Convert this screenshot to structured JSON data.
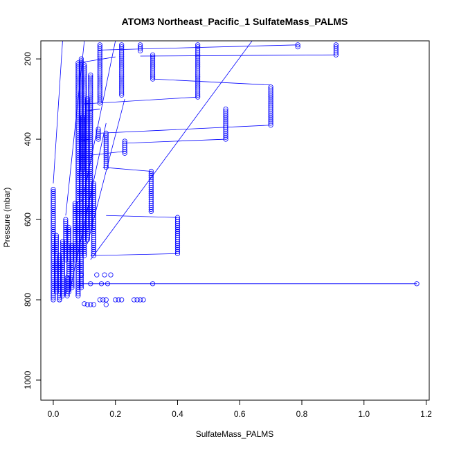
{
  "chart_data": {
    "type": "scatter",
    "title": "ATOM3 Northeast_Pacific_1 SulfateMass_PALMS",
    "xlabel": "SulfateMass_PALMS",
    "ylabel": "Pressure (mbar)",
    "xlim": [
      -0.04,
      1.21
    ],
    "ylim": [
      1050,
      155
    ],
    "y_reversed": true,
    "x_ticks": [
      "0.0",
      "0.2",
      "0.4",
      "0.6",
      "0.8",
      "1.0",
      "1.2"
    ],
    "y_ticks": [
      "200",
      "400",
      "600",
      "800",
      "1000"
    ],
    "point_color": "#0000ff",
    "line_color": "#0000ff",
    "marker": "open-circle",
    "profiles": [
      {
        "x": 0.0,
        "p": [
          525,
          795
        ]
      },
      {
        "x": 0.01,
        "p": [
          640,
          780
        ]
      },
      {
        "x": 0.02,
        "p": [
          690,
          800
        ]
      },
      {
        "x": 0.03,
        "p": [
          655,
          790
        ]
      },
      {
        "x": 0.04,
        "p": [
          600,
          700
        ]
      },
      {
        "x": 0.045,
        "p": [
          745,
          790
        ]
      },
      {
        "x": 0.05,
        "p": [
          620,
          780
        ]
      },
      {
        "x": 0.06,
        "p": [
          665,
          770
        ]
      },
      {
        "x": 0.07,
        "p": [
          560,
          700
        ]
      },
      {
        "x": 0.08,
        "p": [
          210,
          790
        ]
      },
      {
        "x": 0.09,
        "p": [
          200,
          770
        ]
      },
      {
        "x": 0.1,
        "p": [
          215,
          690
        ]
      },
      {
        "x": 0.11,
        "p": [
          300,
          650
        ]
      },
      {
        "x": 0.12,
        "p": [
          240,
          620
        ]
      },
      {
        "x": 0.13,
        "p": [
          510,
          690
        ]
      },
      {
        "x": 0.145,
        "p": [
          375,
          400
        ]
      },
      {
        "x": 0.15,
        "p": [
          165,
          310
        ]
      },
      {
        "x": 0.17,
        "p": [
          385,
          470
        ]
      },
      {
        "x": 0.22,
        "p": [
          165,
          290
        ]
      },
      {
        "x": 0.23,
        "p": [
          405,
          435
        ]
      },
      {
        "x": 0.28,
        "p": [
          165,
          180
        ]
      },
      {
        "x": 0.315,
        "p": [
          480,
          580
        ]
      },
      {
        "x": 0.32,
        "p": [
          190,
          250
        ]
      },
      {
        "x": 0.4,
        "p": [
          595,
          685
        ]
      },
      {
        "x": 0.465,
        "p": [
          165,
          295
        ]
      },
      {
        "x": 0.555,
        "p": [
          325,
          400
        ]
      },
      {
        "x": 0.7,
        "p": [
          270,
          365
        ]
      },
      {
        "x": 0.787,
        "p": [
          165,
          170
        ]
      },
      {
        "x": 0.91,
        "p": [
          165,
          190
        ]
      },
      {
        "x": 0.095,
        "p": [
          345,
          475
        ]
      }
    ],
    "bottom_points": [
      {
        "x": 0.08,
        "p": 760
      },
      {
        "x": 0.12,
        "p": 760
      },
      {
        "x": 0.155,
        "p": 760
      },
      {
        "x": 0.175,
        "p": 760
      },
      {
        "x": 0.32,
        "p": 760
      },
      {
        "x": 1.17,
        "p": 760
      },
      {
        "x": 0.09,
        "p": 738
      },
      {
        "x": 0.14,
        "p": 738
      },
      {
        "x": 0.165,
        "p": 738
      },
      {
        "x": 0.185,
        "p": 738
      },
      {
        "x": 0.15,
        "p": 800
      },
      {
        "x": 0.16,
        "p": 800
      },
      {
        "x": 0.17,
        "p": 800
      },
      {
        "x": 0.2,
        "p": 800
      },
      {
        "x": 0.21,
        "p": 800
      },
      {
        "x": 0.22,
        "p": 800
      },
      {
        "x": 0.26,
        "p": 800
      },
      {
        "x": 0.27,
        "p": 800
      },
      {
        "x": 0.28,
        "p": 800
      },
      {
        "x": 0.29,
        "p": 800
      },
      {
        "x": 0.1,
        "p": 810
      },
      {
        "x": 0.11,
        "p": 812
      },
      {
        "x": 0.12,
        "p": 812
      },
      {
        "x": 0.13,
        "p": 812
      },
      {
        "x": 0.17,
        "p": 812
      },
      {
        "x": 0.0,
        "p": 800
      },
      {
        "x": 0.02,
        "p": 800
      }
    ],
    "connector_lines": [
      {
        "x1": 0.0,
        "p1": 510,
        "x2": 0.03,
        "p2": 155
      },
      {
        "x1": 0.04,
        "p1": 590,
        "x2": 0.1,
        "p2": 155
      },
      {
        "x1": 0.1,
        "p1": 530,
        "x2": 0.2,
        "p2": 155
      },
      {
        "x1": 0.11,
        "p1": 660,
        "x2": 0.23,
        "p2": 300
      },
      {
        "x1": 0.12,
        "p1": 700,
        "x2": 0.64,
        "p2": 155
      },
      {
        "x1": 0.08,
        "p1": 760,
        "x2": 1.17,
        "p2": 760
      },
      {
        "x1": 0.05,
        "p1": 790,
        "x2": 0.17,
        "p2": 360
      },
      {
        "x1": 0.1,
        "p1": 312,
        "x2": 0.465,
        "p2": 295
      },
      {
        "x1": 0.12,
        "p1": 440,
        "x2": 0.23,
        "p2": 430
      },
      {
        "x1": 0.145,
        "p1": 178,
        "x2": 0.787,
        "p2": 165
      },
      {
        "x1": 0.15,
        "p1": 385,
        "x2": 0.7,
        "p2": 365
      },
      {
        "x1": 0.16,
        "p1": 470,
        "x2": 0.315,
        "p2": 480
      },
      {
        "x1": 0.17,
        "p1": 590,
        "x2": 0.4,
        "p2": 595
      },
      {
        "x1": 0.12,
        "p1": 690,
        "x2": 0.4,
        "p2": 685
      },
      {
        "x1": 0.23,
        "p1": 410,
        "x2": 0.555,
        "p2": 400
      },
      {
        "x1": 0.32,
        "p1": 250,
        "x2": 0.7,
        "p2": 265
      },
      {
        "x1": 0.28,
        "p1": 193,
        "x2": 0.91,
        "p2": 190
      },
      {
        "x1": 0.08,
        "p1": 210,
        "x2": 0.2,
        "p2": 195
      },
      {
        "x1": 0.1,
        "p1": 330,
        "x2": 0.15,
        "p2": 325
      },
      {
        "x1": 0.08,
        "p1": 405,
        "x2": 0.12,
        "p2": 400
      },
      {
        "x1": 0.07,
        "p1": 560,
        "x2": 0.1,
        "p2": 550
      },
      {
        "x1": 0.04,
        "p1": 740,
        "x2": 0.06,
        "p2": 745
      }
    ]
  }
}
